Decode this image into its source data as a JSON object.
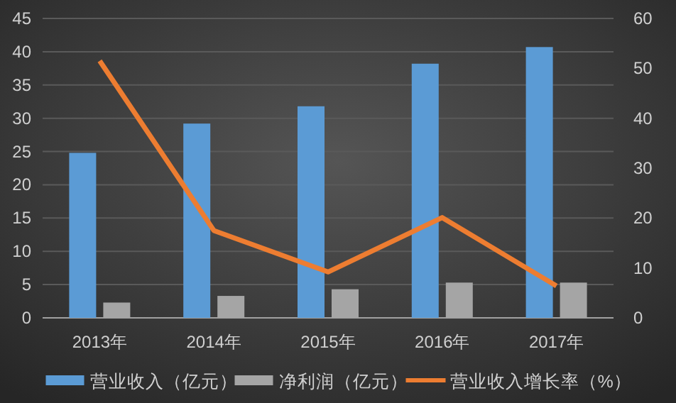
{
  "chart_data": {
    "type": "bar",
    "categories": [
      "2013年",
      "2014年",
      "2015年",
      "2016年",
      "2017年"
    ],
    "series": [
      {
        "name": "营业收入（亿元）",
        "color": "#5b9bd5",
        "values": [
          24.8,
          29.2,
          31.8,
          38.2,
          40.7
        ]
      },
      {
        "name": "净利润（亿元）",
        "color": "#a5a5a5",
        "values": [
          2.3,
          3.3,
          4.3,
          5.3,
          5.3
        ]
      },
      {
        "name": "营业收入增长率（%）",
        "type": "line",
        "axis": "y2",
        "color": "#ed7d31",
        "values": [
          51.5,
          17.5,
          9.2,
          20.1,
          6.4
        ]
      }
    ],
    "ylim": [
      0,
      45
    ],
    "yticks": [
      0,
      5,
      10,
      15,
      20,
      25,
      30,
      35,
      40,
      45
    ],
    "y2lim": [
      0,
      60
    ],
    "y2ticks": [
      0,
      10,
      20,
      30,
      40,
      50,
      60
    ],
    "grid": "y",
    "legend": "bottom",
    "marker": "none",
    "line_style": "solid"
  }
}
